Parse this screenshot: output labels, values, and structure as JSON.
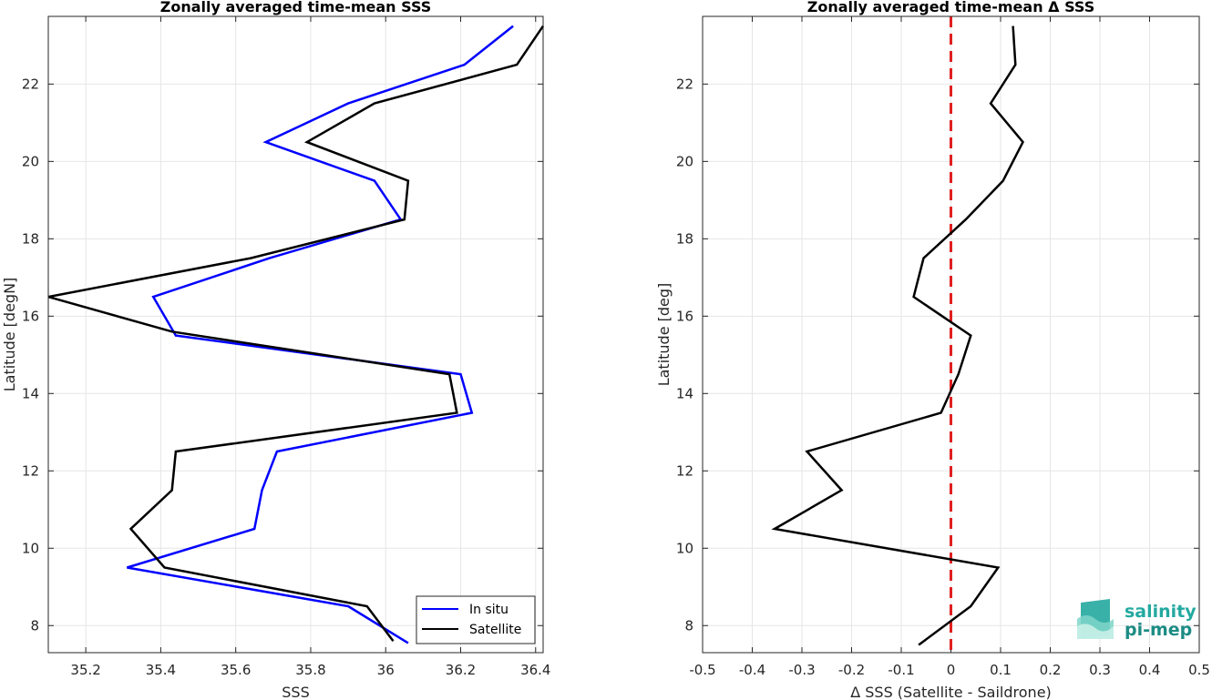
{
  "chart_data": [
    {
      "type": "line",
      "title": "Zonally averaged time-mean SSS",
      "xlabel": "SSS",
      "ylabel": "Latitude [degN]",
      "xlim": [
        35.1,
        36.42
      ],
      "ylim": [
        7.3,
        23.75
      ],
      "xticks": [
        35.2,
        35.4,
        35.6,
        35.8,
        36.0,
        36.2,
        36.4
      ],
      "xtick_labels": [
        "35.2",
        "35.4",
        "35.6",
        "35.8",
        "36",
        "36.2",
        "36.4"
      ],
      "yticks": [
        8,
        10,
        12,
        14,
        16,
        18,
        20,
        22
      ],
      "ytick_labels": [
        "8",
        "10",
        "12",
        "14",
        "16",
        "18",
        "20",
        "22"
      ],
      "grid": true,
      "legend": "bottom-right",
      "series": [
        {
          "name": "In situ",
          "color": "#0000ff",
          "x": [
            36.06,
            35.9,
            35.31,
            35.65,
            35.67,
            35.71,
            36.23,
            36.2,
            35.44,
            35.38,
            35.69,
            36.04,
            35.97,
            35.68,
            35.9,
            36.21,
            36.34
          ],
          "y": [
            7.55,
            8.5,
            9.5,
            10.5,
            11.5,
            12.5,
            13.5,
            14.5,
            15.5,
            16.5,
            17.5,
            18.5,
            19.5,
            20.5,
            21.5,
            22.5,
            23.5
          ]
        },
        {
          "name": "Satellite",
          "color": "#000000",
          "x": [
            36.02,
            35.95,
            35.41,
            35.32,
            35.43,
            35.44,
            36.19,
            36.17,
            35.43,
            35.1,
            35.64,
            36.05,
            36.06,
            35.79,
            35.97,
            36.35,
            36.42
          ],
          "y": [
            7.6,
            8.5,
            9.5,
            10.5,
            11.5,
            12.5,
            13.5,
            14.5,
            15.6,
            16.5,
            17.5,
            18.5,
            19.5,
            20.5,
            21.5,
            22.5,
            23.5
          ]
        }
      ]
    },
    {
      "type": "line",
      "title": "Zonally averaged time-mean Δ SSS",
      "xlabel": "Δ SSS (Satellite - Saildrone)",
      "ylabel": "Latitude [deg]",
      "xlim": [
        -0.5,
        0.5
      ],
      "ylim": [
        7.3,
        23.75
      ],
      "xticks": [
        -0.5,
        -0.4,
        -0.3,
        -0.2,
        -0.1,
        0,
        0.1,
        0.2,
        0.3,
        0.4,
        0.5
      ],
      "xtick_labels": [
        "-0.5",
        "-0.4",
        "-0.3",
        "-0.2",
        "-0.1",
        "0",
        "0.1",
        "0.2",
        "0.3",
        "0.4",
        "0.5"
      ],
      "yticks": [
        8,
        10,
        12,
        14,
        16,
        18,
        20,
        22
      ],
      "ytick_labels": [
        "8",
        "10",
        "12",
        "14",
        "16",
        "18",
        "20",
        "22"
      ],
      "grid": true,
      "series": [
        {
          "color": "#000000",
          "x": [
            -0.065,
            0.04,
            0.095,
            -0.355,
            -0.22,
            -0.29,
            -0.02,
            0.015,
            0.04,
            -0.075,
            -0.055,
            0.03,
            0.105,
            0.145,
            0.08,
            0.13,
            0.125
          ],
          "y": [
            7.5,
            8.5,
            9.5,
            10.5,
            11.5,
            12.5,
            13.5,
            14.5,
            15.5,
            16.5,
            17.5,
            18.5,
            19.5,
            20.5,
            21.5,
            22.5,
            23.5
          ]
        }
      ],
      "reference_line": {
        "x": 0,
        "style": "dashed",
        "color": "#e02020"
      }
    }
  ],
  "logo": {
    "line1": "salinity",
    "line2": "pi-mep"
  }
}
